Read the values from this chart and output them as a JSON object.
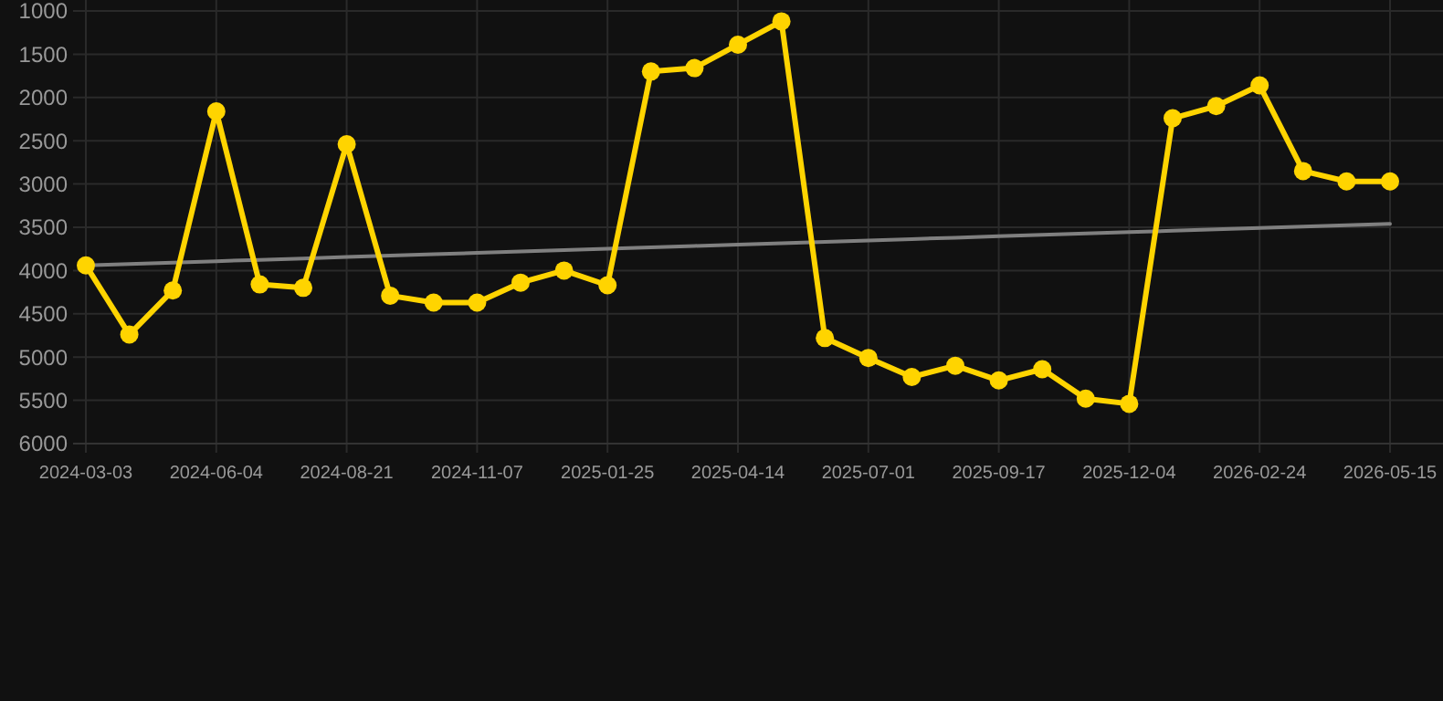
{
  "chart_data": {
    "type": "line",
    "categories": [
      "2024-03-03",
      null,
      null,
      "2024-06-04",
      null,
      null,
      "2024-08-21",
      null,
      null,
      "2024-11-07",
      null,
      null,
      "2025-01-25",
      null,
      null,
      "2025-04-14",
      null,
      null,
      "2025-07-01",
      null,
      null,
      "2025-09-17",
      null,
      null,
      "2025-12-04",
      null,
      null,
      "2026-02-24",
      null,
      null,
      "2026-05-15"
    ],
    "series": [
      {
        "color": "#ffd400",
        "marker": "circle",
        "values": [
          3940,
          4740,
          4230,
          2160,
          4160,
          4200,
          2540,
          4290,
          4370,
          4370,
          4140,
          4000,
          4170,
          1700,
          1660,
          1390,
          1120,
          4780,
          5010,
          5230,
          5100,
          5270,
          5140,
          5480,
          5540,
          2240,
          2100,
          1860,
          2850,
          2970,
          2970
        ]
      },
      {
        "type": "line",
        "color": "#808080",
        "marker": "none",
        "values": [
          3940,
          3924,
          3908,
          3892,
          3876,
          3860,
          3844,
          3828,
          3812,
          3796,
          3780,
          3764,
          3748,
          3732,
          3716,
          3700,
          3684,
          3668,
          3652,
          3636,
          3620,
          3604,
          3588,
          3572,
          3556,
          3540,
          3524,
          3508,
          3492,
          3476,
          3460
        ]
      }
    ],
    "ylim": [
      6000,
      1000
    ],
    "yticks": [
      1000,
      1500,
      2000,
      2500,
      3000,
      3500,
      4000,
      4500,
      5000,
      5500,
      6000
    ],
    "grid": true
  }
}
